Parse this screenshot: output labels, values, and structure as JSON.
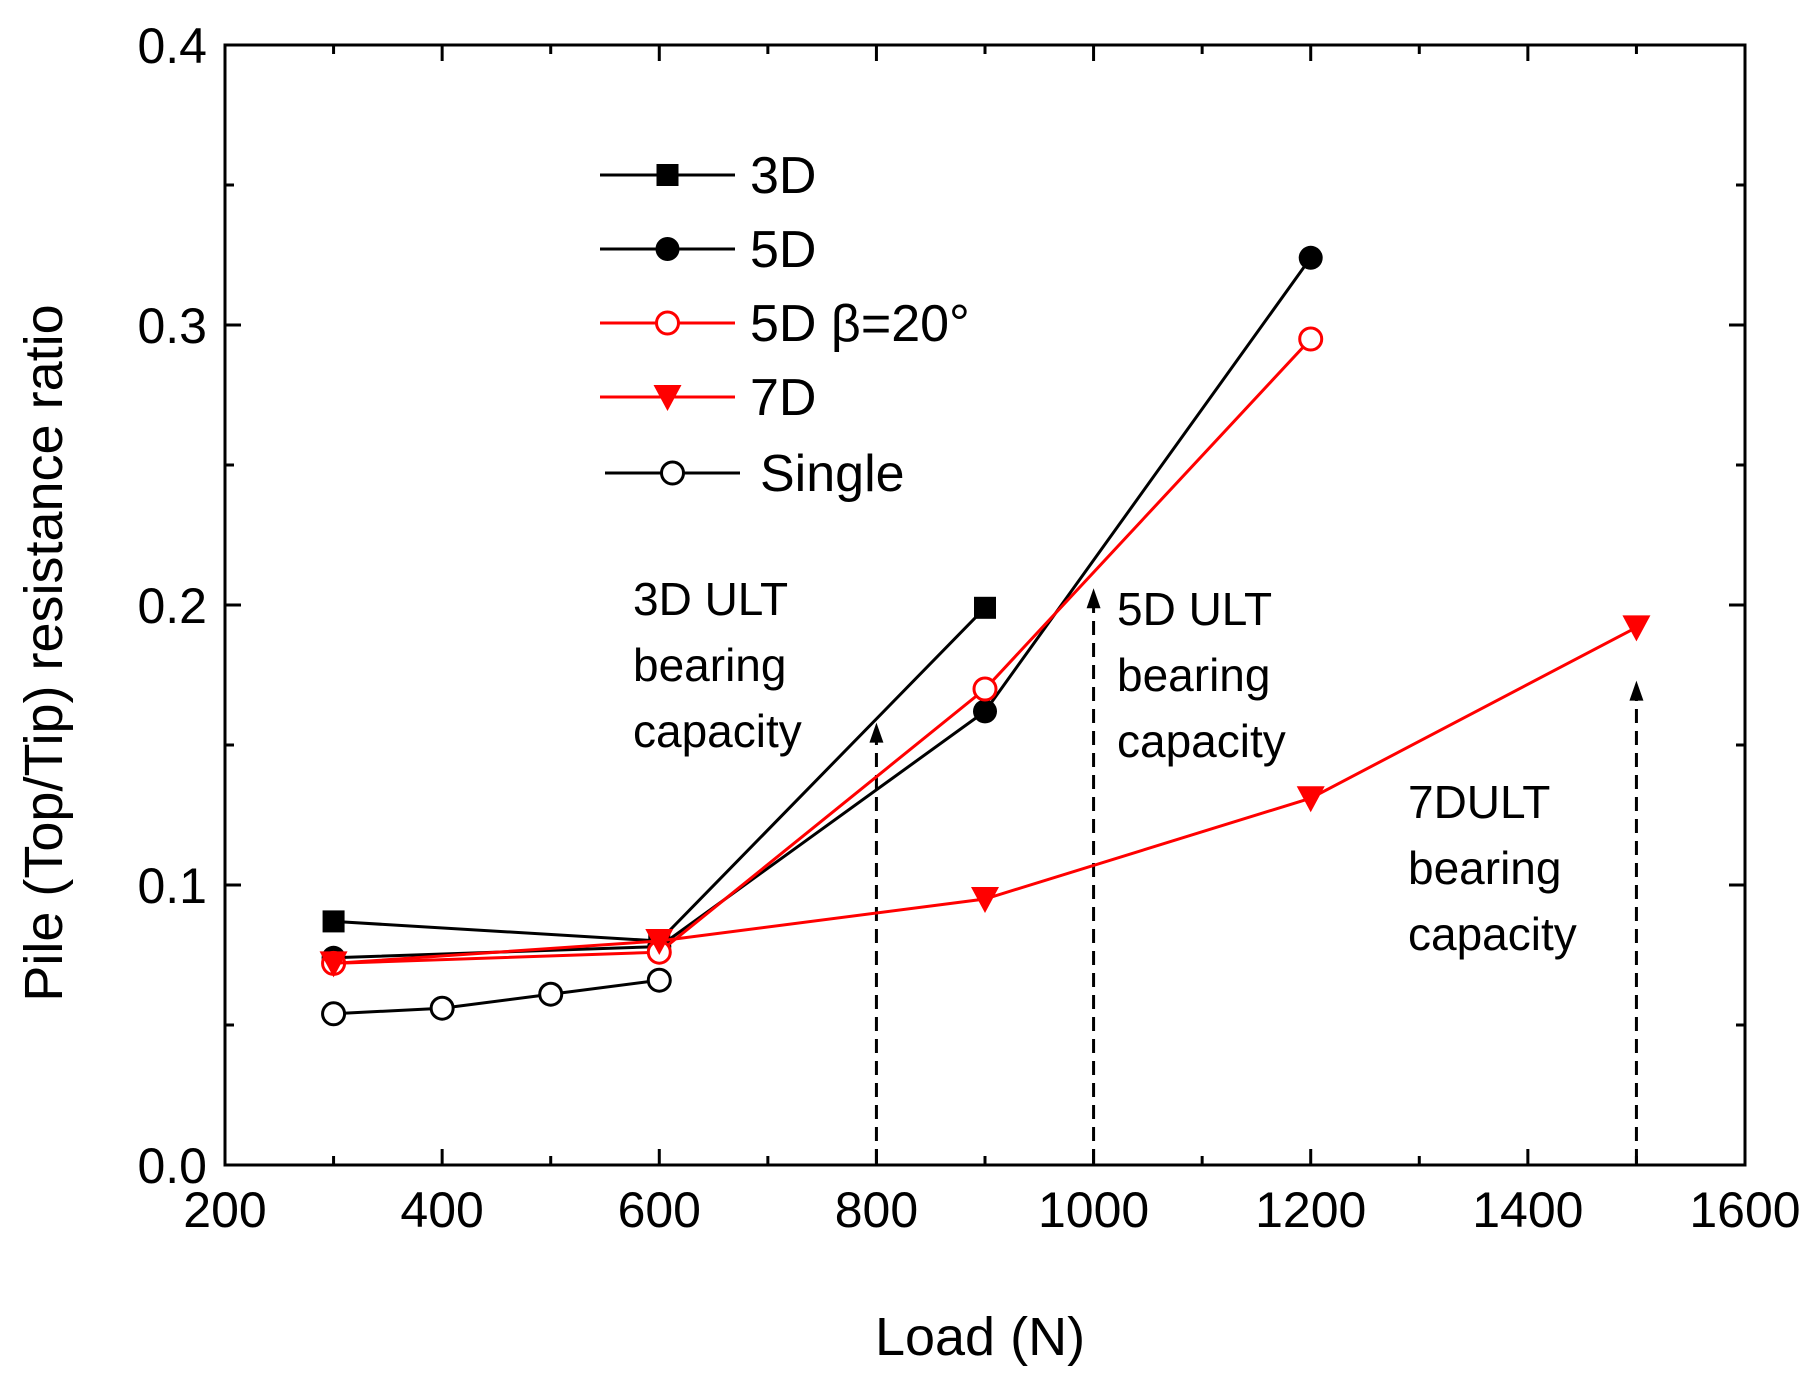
{
  "chart_data": {
    "type": "line",
    "xlabel": "Load (N)",
    "ylabel": "Pile (Top/Tip) resistance ratio",
    "xlim": [
      200,
      1600
    ],
    "ylim": [
      0.0,
      0.4
    ],
    "x_ticks": [
      "200",
      "400",
      "600",
      "800",
      "1000",
      "1200",
      "1400",
      "1600"
    ],
    "y_ticks": [
      "0.0",
      "0.1",
      "0.2",
      "0.3",
      "0.4"
    ],
    "grid": false,
    "legend_position": "top-left",
    "series": [
      {
        "name": "3D",
        "color": "#000000",
        "marker": "square-filled",
        "x": [
          300,
          600,
          900
        ],
        "y": [
          0.087,
          0.08,
          0.199
        ]
      },
      {
        "name": "5D",
        "color": "#000000",
        "marker": "circle-filled",
        "x": [
          300,
          600,
          900,
          1200
        ],
        "y": [
          0.074,
          0.078,
          0.162,
          0.324
        ]
      },
      {
        "name": "5D β=20°",
        "color": "#ff0000",
        "marker": "circle-open",
        "x": [
          300,
          600,
          900,
          1200
        ],
        "y": [
          0.072,
          0.076,
          0.17,
          0.295
        ]
      },
      {
        "name": "7D",
        "color": "#ff0000",
        "marker": "triangle-down-filled",
        "x": [
          300,
          600,
          900,
          1200,
          1500
        ],
        "y": [
          0.072,
          0.08,
          0.095,
          0.131,
          0.192
        ]
      },
      {
        "name": "Single",
        "color": "#000000",
        "marker": "circle-open",
        "x": [
          300,
          400,
          500,
          600
        ],
        "y": [
          0.054,
          0.056,
          0.061,
          0.066
        ]
      }
    ],
    "annotations": [
      {
        "lines": [
          "3D ULT",
          "bearing",
          "capacity"
        ],
        "arrow_x": 800,
        "arrow_y_top": 0.158
      },
      {
        "lines": [
          "5D ULT",
          "bearing",
          "capacity"
        ],
        "arrow_x": 1000,
        "arrow_y_top": 0.206
      },
      {
        "lines": [
          "7DULT",
          "bearing",
          "capacity"
        ],
        "arrow_x": 1500,
        "arrow_y_top": 0.173
      }
    ]
  }
}
